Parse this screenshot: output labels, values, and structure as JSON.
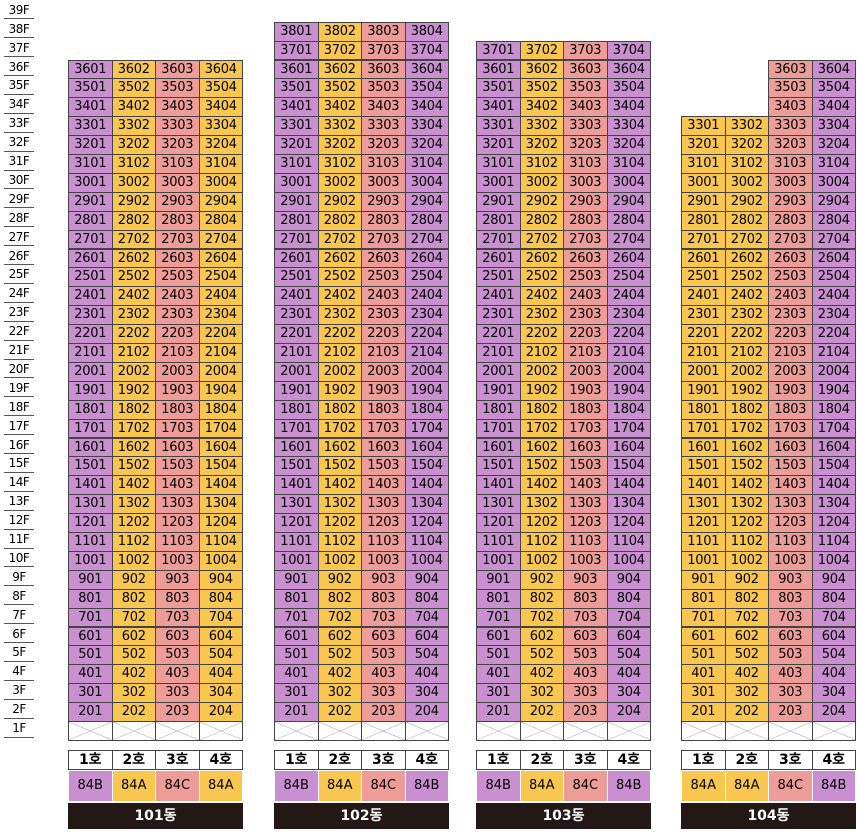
{
  "colors": {
    "purple": "#c98fd0",
    "yellow": "#f9c74f",
    "pink": "#ee9c98",
    "bldg_bg": "#231815"
  },
  "floors": [
    "39F",
    "38F",
    "37F",
    "36F",
    "35F",
    "34F",
    "33F",
    "32F",
    "31F",
    "30F",
    "29F",
    "28F",
    "27F",
    "26F",
    "25F",
    "24F",
    "23F",
    "22F",
    "21F",
    "20F",
    "19F",
    "18F",
    "17F",
    "16F",
    "15F",
    "14F",
    "13F",
    "12F",
    "11F",
    "10F",
    "9F",
    "8F",
    "7F",
    "6F",
    "5F",
    "4F",
    "3F",
    "2F",
    "1F"
  ],
  "buildings": [
    {
      "name": "101동",
      "top_floor": 36,
      "lines": [
        {
          "ho": "1호",
          "type": "84B",
          "color": "purple"
        },
        {
          "ho": "2호",
          "type": "84A",
          "color": "yellow"
        },
        {
          "ho": "3호",
          "type": "84C",
          "color": "pink"
        },
        {
          "ho": "4호",
          "type": "84A",
          "color": "yellow"
        }
      ],
      "partial_floors": {}
    },
    {
      "name": "102동",
      "top_floor": 38,
      "lines": [
        {
          "ho": "1호",
          "type": "84B",
          "color": "purple"
        },
        {
          "ho": "2호",
          "type": "84A",
          "color": "yellow"
        },
        {
          "ho": "3호",
          "type": "84C",
          "color": "pink"
        },
        {
          "ho": "4호",
          "type": "84B",
          "color": "purple"
        }
      ],
      "partial_floors": {}
    },
    {
      "name": "103동",
      "top_floor": 37,
      "lines": [
        {
          "ho": "1호",
          "type": "84B",
          "color": "purple"
        },
        {
          "ho": "2호",
          "type": "84A",
          "color": "yellow"
        },
        {
          "ho": "3호",
          "type": "84C",
          "color": "pink"
        },
        {
          "ho": "4호",
          "type": "84B",
          "color": "purple"
        }
      ],
      "partial_floors": {}
    },
    {
      "name": "104동",
      "top_floor": 36,
      "lines": [
        {
          "ho": "1호",
          "type": "84A",
          "color": "yellow"
        },
        {
          "ho": "2호",
          "type": "84A",
          "color": "yellow"
        },
        {
          "ho": "3호",
          "type": "84C",
          "color": "pink"
        },
        {
          "ho": "4호",
          "type": "84B",
          "color": "purple"
        }
      ],
      "partial_floors": {
        "34": [
          3,
          4
        ],
        "35": [
          3,
          4
        ],
        "36": [
          3,
          4
        ]
      }
    }
  ]
}
